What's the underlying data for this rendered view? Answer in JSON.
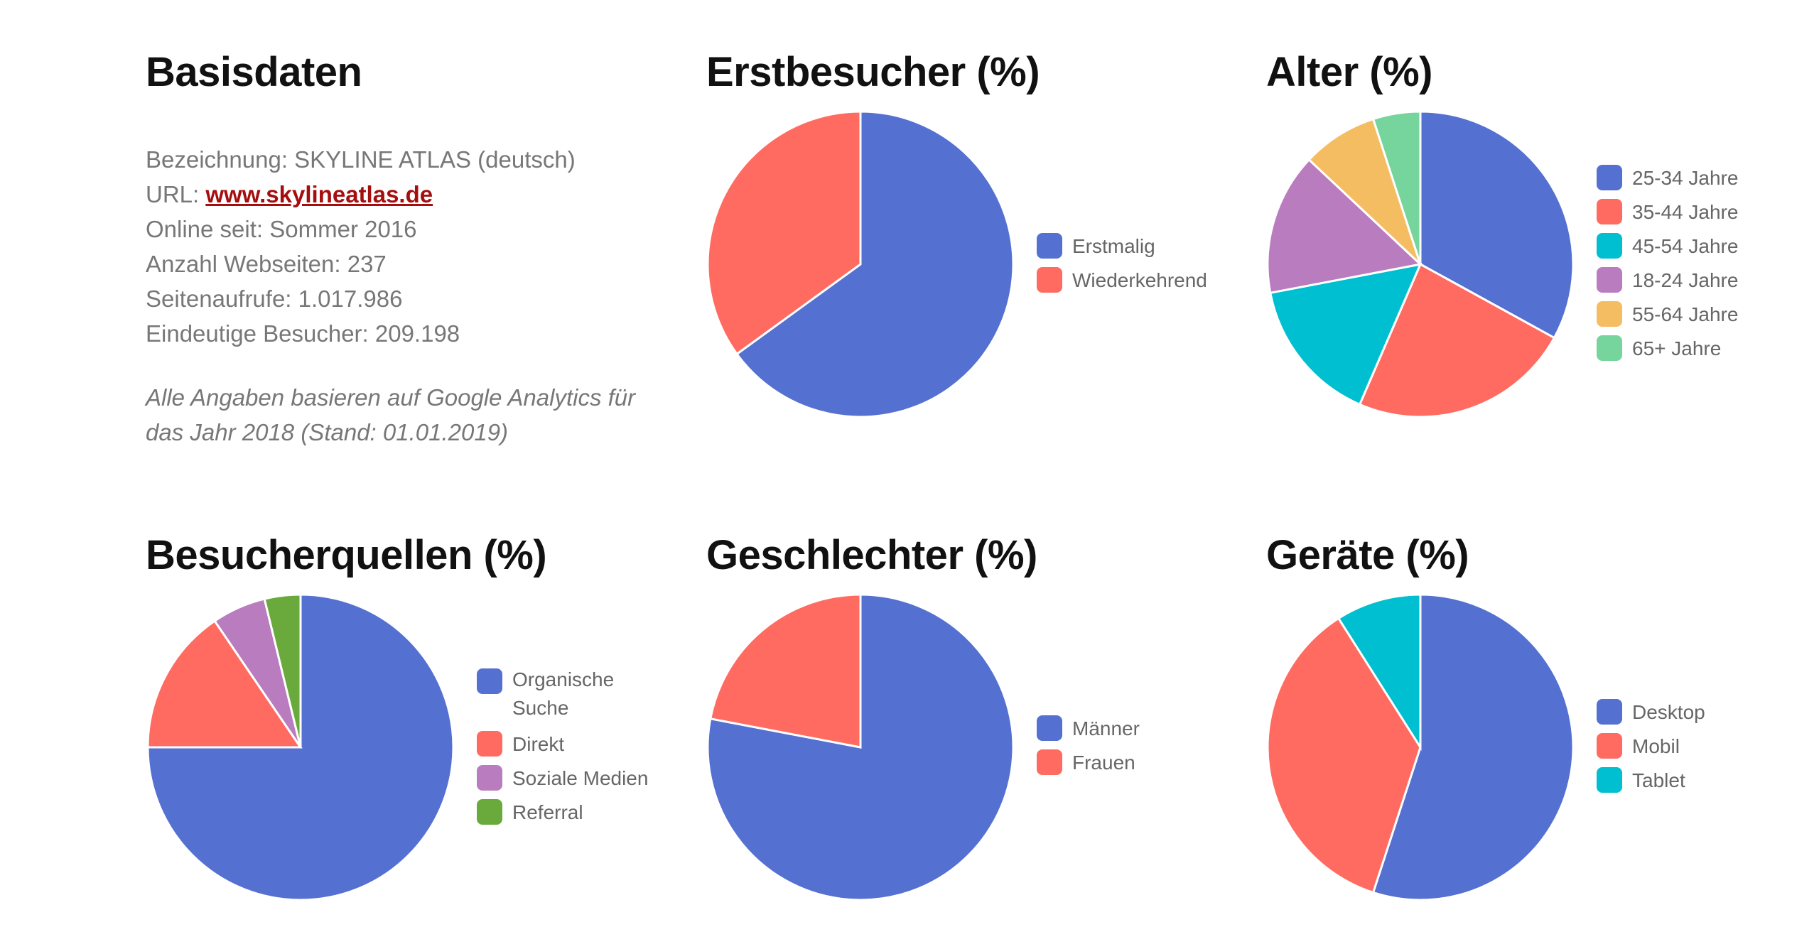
{
  "basisdaten": {
    "title": "Basisdaten",
    "bezeichnung": "Bezeichnung: SKYLINE ATLAS (deutsch)",
    "url_label": "URL: ",
    "url_link": "www.skylineatlas.de",
    "online_seit": "Online seit: Sommer 2016",
    "anzahl_webseiten": "Anzahl Webseiten: 237",
    "seitenaufrufe": "Seitenaufrufe: 1.017.986",
    "besucher": "Eindeutige Besucher: 209.198",
    "note": "Alle Angaben basieren auf Google Analytics für das Jahr 2018 (Stand: 01.01.2019)",
    "link_color": "#a50e0e"
  },
  "chart_data": [
    {
      "type": "pie",
      "title": "Erstbesucher (%)",
      "categories": [
        "Erstmalig",
        "Wiederkehrend"
      ],
      "values": [
        65,
        35
      ],
      "colors": [
        "#5470d0",
        "#ff6b60"
      ],
      "legend": "right"
    },
    {
      "type": "pie",
      "title": "Alter (%)",
      "categories": [
        "25-34 Jahre",
        "35-44 Jahre",
        "45-54 Jahre",
        "18-24 Jahre",
        "55-64 Jahre",
        "65+ Jahre"
      ],
      "values": [
        33,
        23.5,
        15.5,
        15,
        8,
        5
      ],
      "colors": [
        "#5470d0",
        "#ff6b60",
        "#00bfd0",
        "#b97cbf",
        "#f5bd62",
        "#76d59c"
      ],
      "legend": "right"
    },
    {
      "type": "pie",
      "title": "Besucherquellen (%)",
      "categories": [
        "Organische Suche",
        "Direkt",
        "Soziale Medien",
        "Referral"
      ],
      "values": [
        75,
        15.5,
        5.7,
        3.8
      ],
      "colors": [
        "#5470d0",
        "#ff6b60",
        "#b97cbf",
        "#6aaa3c"
      ],
      "legend": "right"
    },
    {
      "type": "pie",
      "title": "Geschlechter (%)",
      "categories": [
        "Männer",
        "Frauen"
      ],
      "values": [
        78,
        22
      ],
      "colors": [
        "#5470d0",
        "#ff6b60"
      ],
      "legend": "right"
    },
    {
      "type": "pie",
      "title": "Geräte (%)",
      "categories": [
        "Desktop",
        "Mobil",
        "Tablet"
      ],
      "values": [
        55,
        36,
        9
      ],
      "colors": [
        "#5470d0",
        "#ff6b60",
        "#00bfd0"
      ],
      "legend": "right"
    }
  ]
}
